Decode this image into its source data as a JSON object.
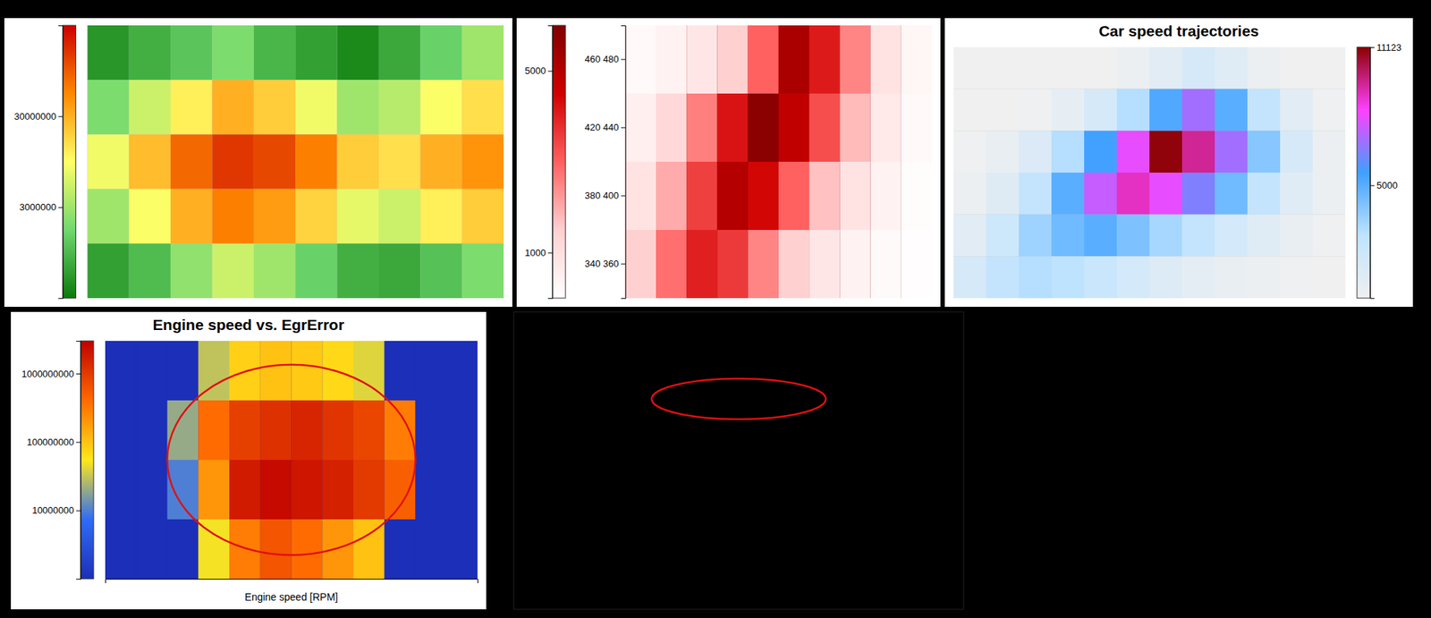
{
  "chart_data": [
    {
      "type": "heatmap",
      "log": true,
      "tick_labels": false,
      "color_range": [
        300000,
        300000000
      ],
      "color_ticks": [
        3000000,
        30000000
      ],
      "z": [
        [
          500000,
          800000,
          1200000,
          2000000,
          900000,
          600000,
          400000,
          700000,
          1500000,
          3000000
        ],
        [
          2000000,
          5000000,
          12000000,
          30000000,
          20000000,
          8000000,
          3000000,
          4000000,
          9000000,
          15000000
        ],
        [
          8000000,
          25000000,
          80000000,
          150000000,
          120000000,
          60000000,
          20000000,
          15000000,
          30000000,
          45000000
        ],
        [
          3000000,
          9000000,
          30000000,
          60000000,
          40000000,
          18000000,
          7000000,
          5000000,
          12000000,
          20000000
        ],
        [
          600000,
          1000000,
          2500000,
          5000000,
          3000000,
          1500000,
          800000,
          700000,
          1100000,
          2000000
        ]
      ]
    },
    {
      "type": "heatmap",
      "tick_labels": "y",
      "rows": [
        "460 480",
        "420 440",
        "380 400",
        "340 360"
      ],
      "color_range": [
        0,
        6000
      ],
      "color_ticks": [
        1000,
        5000
      ],
      "z": [
        [
          200,
          400,
          800,
          1500,
          3000,
          5200,
          4100,
          2500,
          900,
          300
        ],
        [
          500,
          1200,
          2600,
          4200,
          5800,
          4800,
          3300,
          1800,
          700,
          200
        ],
        [
          900,
          2000,
          3500,
          5000,
          4400,
          3000,
          1700,
          900,
          400,
          100
        ],
        [
          1500,
          2800,
          4000,
          3600,
          2500,
          1500,
          800,
          400,
          150,
          50
        ]
      ]
    },
    {
      "type": "heatmap",
      "title": "Car speed trajectories",
      "tick_labels": false,
      "color_range": [
        0,
        11123
      ],
      "color_ticks": [
        5000,
        11123
      ],
      "z": [
        [
          0,
          0,
          0,
          0,
          0,
          200,
          800,
          1500,
          900,
          300,
          0,
          0
        ],
        [
          0,
          0,
          100,
          500,
          1500,
          3000,
          5200,
          7000,
          5000,
          2500,
          800,
          100
        ],
        [
          100,
          400,
          1200,
          3000,
          5500,
          8000,
          11000,
          9500,
          7000,
          4000,
          1500,
          300
        ],
        [
          300,
          1000,
          2500,
          5000,
          7500,
          9000,
          8000,
          6500,
          4500,
          2500,
          900,
          200
        ],
        [
          800,
          2000,
          3500,
          4500,
          5000,
          4200,
          3300,
          2500,
          1600,
          900,
          400,
          100
        ],
        [
          1500,
          2500,
          3000,
          2800,
          2200,
          1600,
          1100,
          700,
          400,
          200,
          100,
          0
        ]
      ]
    },
    {
      "type": "heatmap",
      "title": "Engine speed vs. EgrError",
      "x_label": "Engine speed [RPM]",
      "log": true,
      "tick_labels": false,
      "color_range": [
        1000000,
        3000000000
      ],
      "color_ticks": [
        10000000,
        100000000,
        1000000000
      ],
      "z": [
        [
          1000000,
          1000000,
          1000000,
          30000000,
          80000000,
          100000000,
          90000000,
          70000000,
          40000000,
          1000000,
          1000000,
          1000000
        ],
        [
          1000000,
          1000000,
          20000000,
          400000000,
          900000000,
          1200000000,
          1500000000,
          1100000000,
          800000000,
          300000000,
          1000000,
          1000000
        ],
        [
          1000000,
          1000000,
          10000000,
          200000000,
          1800000000,
          2500000000,
          2000000000,
          1600000000,
          1000000000,
          500000000,
          1000000,
          1000000
        ],
        [
          1000000,
          1000000,
          1000000,
          50000000,
          300000000,
          600000000,
          400000000,
          200000000,
          100000000,
          1000000,
          1000000,
          1000000
        ]
      ]
    }
  ]
}
